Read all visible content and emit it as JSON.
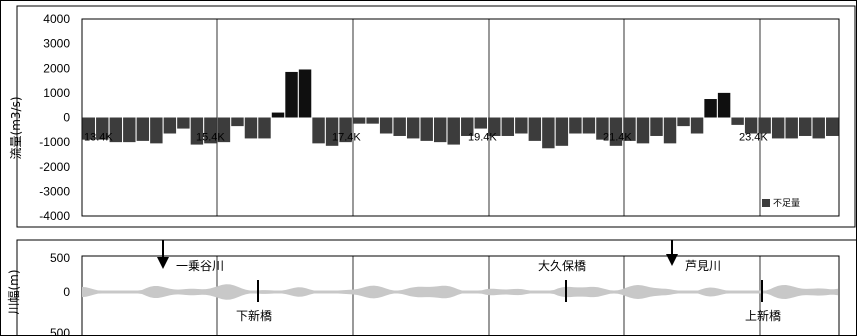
{
  "chart_data": [
    {
      "type": "bar",
      "ylabel": "流量(m3/s)",
      "ylim": [
        -4000,
        4000
      ],
      "yticks": [
        "4000",
        "3000",
        "2000",
        "1000",
        "0",
        "-1000",
        "-2000",
        "-3000",
        "-4000"
      ],
      "x_labels": [
        "13.4K",
        "15.4K",
        "17.4K",
        "19.4K",
        "21.4K",
        "23.4K"
      ],
      "legend": {
        "label": "不足量",
        "position": "bottom-right"
      },
      "grid": true,
      "values": [
        -900,
        -900,
        -1000,
        -1000,
        -950,
        -1050,
        -650,
        -450,
        -1100,
        -1050,
        -1000,
        -350,
        -850,
        -850,
        200,
        1850,
        1950,
        -1050,
        -1150,
        -1000,
        -250,
        -250,
        -650,
        -750,
        -850,
        -950,
        -1000,
        -1100,
        -750,
        -450,
        -750,
        -750,
        -650,
        -950,
        -1250,
        -1150,
        -650,
        -650,
        -900,
        -1150,
        -950,
        -1050,
        -750,
        -1050,
        -350,
        -650,
        750,
        1000,
        -300,
        -650,
        -650,
        -850,
        -850,
        -750,
        -850,
        -750
      ],
      "bar_colors": {
        "negative": "#3c3c3c",
        "positive": "#0f0f0f"
      }
    },
    {
      "type": "line",
      "ylabel": "川幅(m)",
      "ylim": [
        -500,
        500
      ],
      "yticks": [
        "500",
        "0",
        "500"
      ],
      "grid": true,
      "band_color": "#c8c8c8",
      "annotations": {
        "rivers": [
          "一乗谷川",
          "芦見川"
        ],
        "bridges": [
          "下新橋",
          "大久保橋",
          "上新橋"
        ]
      }
    }
  ]
}
